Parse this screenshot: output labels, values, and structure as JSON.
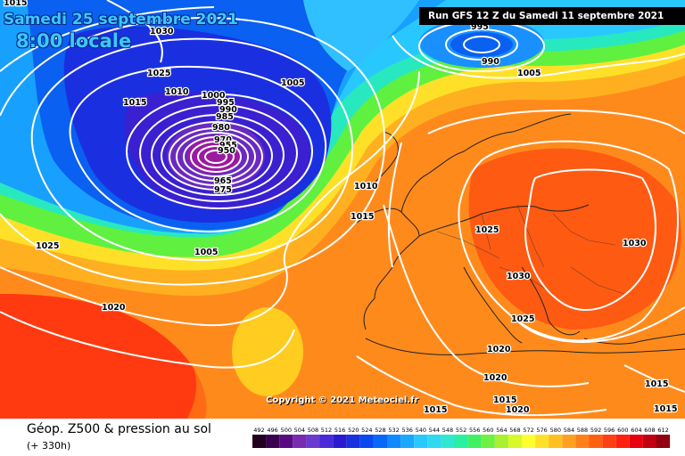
{
  "header": {
    "date": "Samedi 25 septembre 2021",
    "time": "8:00 locale"
  },
  "run_banner": "Run GFS 12 Z du Samedi 11 septembre 2021",
  "copyright": "Copyright © 2021 Meteociel.fr",
  "footer": {
    "title": "Géop. Z500 & pression au sol",
    "subtitle": "(+ 330h)"
  },
  "colors": {
    "z492": "#2b0030",
    "z500": "#5a0a80",
    "z508": "#7a2ab0",
    "z516": "#2a1ad0",
    "z524": "#1030e0",
    "z532": "#0858f0",
    "z540": "#1aa0ff",
    "z548": "#30d0e8",
    "z552": "#20e0a0",
    "z560": "#40f040",
    "z568": "#c0f020",
    "z572": "#ffff30",
    "z576": "#ffd020",
    "z580": "#ffa020",
    "z584": "#ff7818",
    "z588": "#ff4a10",
    "z592": "#ff2010",
    "z596": "#e00010",
    "z604": "#c00010",
    "z612": "#900010"
  },
  "legend_scale": {
    "labels": [
      "492",
      "496",
      "500",
      "504",
      "508",
      "512",
      "516",
      "520",
      "524",
      "528",
      "532",
      "536",
      "540",
      "544",
      "548",
      "552",
      "556",
      "560",
      "564",
      "568",
      "572",
      "576",
      "580",
      "584",
      "588",
      "592",
      "596",
      "600",
      "604",
      "608",
      "612"
    ],
    "colors": [
      "#220020",
      "#3a0050",
      "#5a0a80",
      "#7a2ab0",
      "#6a3ad0",
      "#4a2ad8",
      "#2a1ad0",
      "#1830e0",
      "#0a48f0",
      "#0868f8",
      "#1088ff",
      "#1aa8ff",
      "#28c8ff",
      "#30d8f0",
      "#30e8d0",
      "#28f0a0",
      "#40f060",
      "#70f040",
      "#a8f030",
      "#d8f828",
      "#ffff30",
      "#ffe028",
      "#ffc020",
      "#ffa020",
      "#ff8018",
      "#ff6010",
      "#ff4010",
      "#ff2010",
      "#e80010",
      "#c00010",
      "#900010"
    ]
  },
  "isobar_labels": [
    "1015",
    "1030",
    "1025",
    "1015",
    "1010",
    "1000",
    "995",
    "990",
    "985",
    "980",
    "970",
    "960",
    "955",
    "950",
    "965",
    "975",
    "1005",
    "1010",
    "1015",
    "1025",
    "1005",
    "1020",
    "995",
    "990",
    "1005",
    "1000",
    "1025",
    "1030",
    "1030",
    "1025",
    "1020",
    "1020",
    "1015",
    "1015",
    "1020",
    "1015",
    "1015"
  ]
}
